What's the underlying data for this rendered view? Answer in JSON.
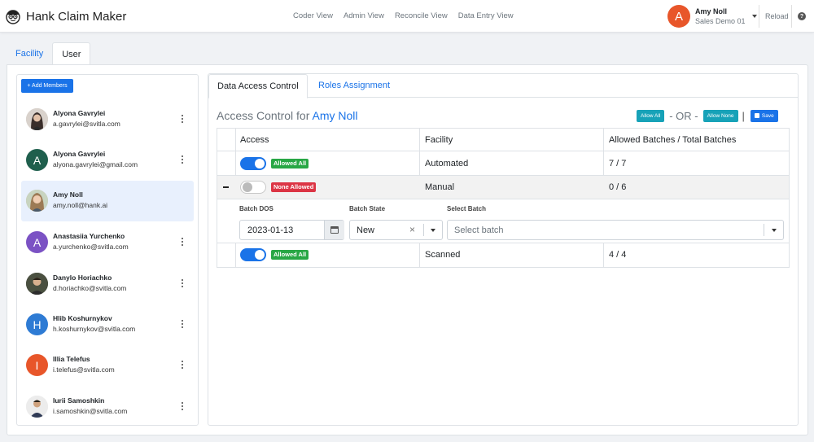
{
  "app": {
    "title": "Hank Claim Maker",
    "logo_icon": "cartoon-face-icon"
  },
  "nav": {
    "links": [
      "Coder View",
      "Admin View",
      "Reconcile View",
      "Data Entry View"
    ]
  },
  "user": {
    "initial": "A",
    "name": "Amy Noll",
    "org": "Sales Demo 01",
    "avatar_color": "#e8562a"
  },
  "header_actions": {
    "reload": "Reload",
    "help": "?"
  },
  "outer_tabs": [
    {
      "label": "Facility",
      "active": false
    },
    {
      "label": "User",
      "active": true
    }
  ],
  "members_panel": {
    "add_button": "+ Add Members",
    "members": [
      {
        "name": "Alyona Gavrylei",
        "email": "a.gavrylei@svitla.com",
        "avatar": "photo",
        "color": "#5a4a44"
      },
      {
        "name": "Alyona Gavrylei",
        "email": "alyona.gavrylei@gmail.com",
        "initial": "A",
        "avatar": "initial",
        "color": "#1f5f4d"
      },
      {
        "name": "Amy Noll",
        "email": "amy.noll@hank.ai",
        "avatar": "photo",
        "color": "#b08f6f",
        "selected": true
      },
      {
        "name": "Anastasiia Yurchenko",
        "email": "a.yurchenko@svitla.com",
        "initial": "A",
        "avatar": "initial",
        "color": "#7b52c4"
      },
      {
        "name": "Danylo Horiachko",
        "email": "d.horiachko@svitla.com",
        "avatar": "photo",
        "color": "#3d3a33"
      },
      {
        "name": "Hlib Koshurnykov",
        "email": "h.koshurnykov@svitla.com",
        "initial": "H",
        "avatar": "initial",
        "color": "#2e7bd4"
      },
      {
        "name": "Illia Telefus",
        "email": "i.telefus@svitla.com",
        "initial": "I",
        "avatar": "initial",
        "color": "#e8562a"
      },
      {
        "name": "Iurii Samoshkin",
        "email": "i.samoshkin@svitla.com",
        "avatar": "photo",
        "color": "#d6d6d6"
      }
    ]
  },
  "inner_tabs": [
    {
      "label": "Data Access Control",
      "active": true
    },
    {
      "label": "Roles Assignment",
      "active": false
    }
  ],
  "access_control": {
    "title_prefix": "Access Control for",
    "title_user": "Amy Noll",
    "allow_all": "Allow All",
    "or_text": "- OR -",
    "allow_none": "Allow None",
    "pipe": "|",
    "save": "Save",
    "columns": [
      "Access",
      "Facility",
      "Allowed Batches / Total Batches"
    ],
    "rows": [
      {
        "toggle_on": true,
        "badge": "Allowed All",
        "facility": "Automated",
        "batches": "7 / 7"
      },
      {
        "toggle_on": false,
        "badge": "None Allowed",
        "facility": "Manual",
        "batches": "0 / 6",
        "expanded": true
      },
      {
        "toggle_on": true,
        "badge": "Allowed All",
        "facility": "Scanned",
        "batches": "4 / 4"
      }
    ],
    "filters": {
      "dos_label": "Batch DOS",
      "dos_value": "2023-01-13",
      "state_label": "Batch State",
      "state_value": "New",
      "clear": "×",
      "batch_label": "Select Batch",
      "batch_placeholder": "Select batch"
    }
  }
}
